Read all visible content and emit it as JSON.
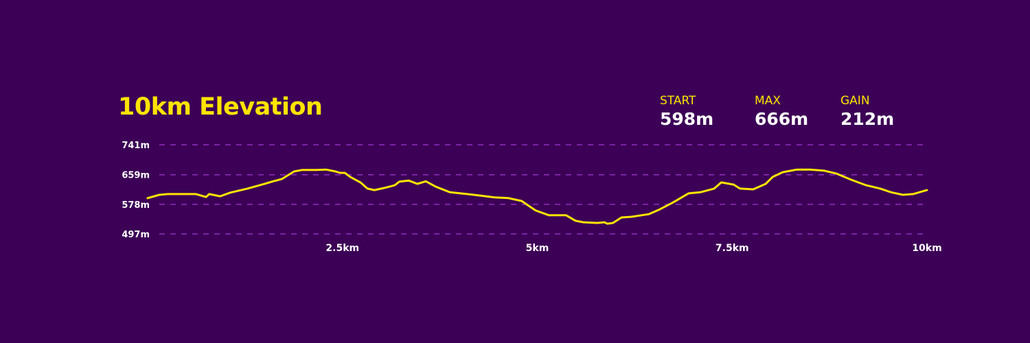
{
  "title": "10km Elevation",
  "stats": [
    {
      "label": "START",
      "value": "598m"
    },
    {
      "label": "MAX",
      "value": "666m"
    },
    {
      "label": "GAIN",
      "value": "212m"
    }
  ],
  "colors": {
    "background": "#3c0156",
    "accent": "#ffe400",
    "grid": "#8e2fc0",
    "text": "#ffffff"
  },
  "chart_data": {
    "type": "line",
    "title": "10km Elevation",
    "xlabel": "",
    "ylabel": "",
    "xlim": [
      0,
      10
    ],
    "ylim": [
      497,
      741
    ],
    "grid": "horizontal-dashed",
    "y_ticks": [
      {
        "value": 741,
        "label": "741m"
      },
      {
        "value": 659,
        "label": "659m"
      },
      {
        "value": 578,
        "label": "578m"
      },
      {
        "value": 497,
        "label": "497m"
      }
    ],
    "x_ticks": [
      {
        "value": 2.5,
        "label": "2.5km"
      },
      {
        "value": 5,
        "label": "5km"
      },
      {
        "value": 7.5,
        "label": "7.5km"
      },
      {
        "value": 10,
        "label": "10km"
      }
    ],
    "x": [
      0,
      0.15,
      0.26,
      0.48,
      0.62,
      0.75,
      0.79,
      0.93,
      1.06,
      1.28,
      1.5,
      1.61,
      1.72,
      1.88,
      1.98,
      2.16,
      2.29,
      2.41,
      2.47,
      2.53,
      2.6,
      2.73,
      2.82,
      2.91,
      3.04,
      3.17,
      3.23,
      3.35,
      3.46,
      3.57,
      3.7,
      3.88,
      4.1,
      4.27,
      4.45,
      4.63,
      4.8,
      4.89,
      4.98,
      5.15,
      5.37,
      5.49,
      5.59,
      5.77,
      5.86,
      5.9,
      5.97,
      6.08,
      6.21,
      6.43,
      6.56,
      6.74,
      6.94,
      7.09,
      7.27,
      7.36,
      7.52,
      7.6,
      7.77,
      7.93,
      8.02,
      8.15,
      8.33,
      8.5,
      8.68,
      8.84,
      9.03,
      9.22,
      9.4,
      9.54,
      9.69,
      9.82,
      10
    ],
    "y": [
      595,
      604,
      606,
      606,
      606,
      598,
      606,
      600,
      610,
      621,
      634,
      641,
      647,
      668,
      672,
      672,
      673,
      668,
      664,
      664,
      653,
      638,
      621,
      617,
      623,
      630,
      640,
      643,
      634,
      641,
      626,
      611,
      606,
      602,
      597,
      595,
      587,
      574,
      561,
      548,
      548,
      533,
      529,
      527,
      529,
      525,
      527,
      542,
      544,
      551,
      563,
      583,
      608,
      611,
      621,
      638,
      632,
      621,
      619,
      634,
      653,
      666,
      673,
      673,
      670,
      662,
      645,
      630,
      621,
      611,
      604,
      606,
      617
    ]
  }
}
